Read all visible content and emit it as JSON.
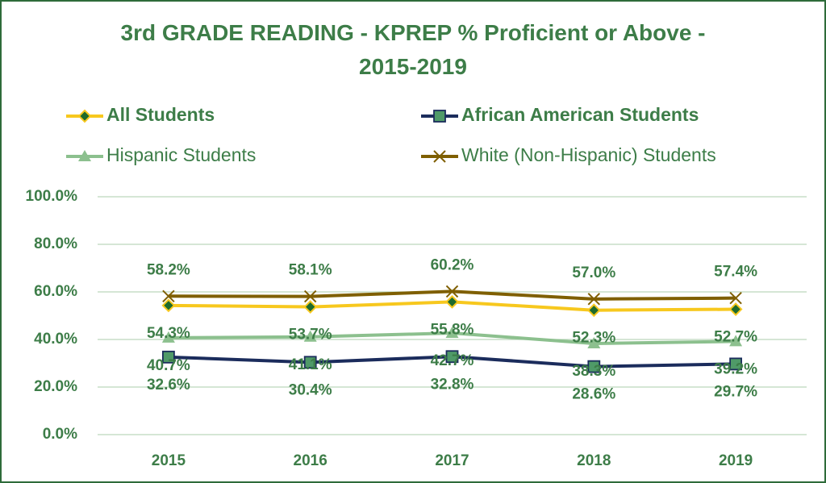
{
  "chart_data": {
    "type": "line",
    "title": "3rd GRADE READING - KPREP % Proficient or Above - 2015-2019",
    "categories": [
      "2015",
      "2016",
      "2017",
      "2018",
      "2019"
    ],
    "series": [
      {
        "name": "All Students",
        "color": "#f7c81e",
        "values": [
          54.3,
          53.7,
          55.8,
          52.3,
          52.7
        ],
        "value_labels": [
          "54.3%",
          "53.7%",
          "55.8%",
          "52.3%",
          "52.7%"
        ]
      },
      {
        "name": "African American Students",
        "color": "#1b2c5c",
        "values": [
          32.6,
          30.4,
          32.8,
          28.6,
          29.7
        ],
        "value_labels": [
          "32.6%",
          "30.4%",
          "32.8%",
          "28.6%",
          "29.7%"
        ]
      },
      {
        "name": "Hispanic Students",
        "color": "#8cc08e",
        "values": [
          40.7,
          41.1,
          42.7,
          38.3,
          39.2
        ],
        "value_labels": [
          "40.7%",
          "41.1%",
          "42.7%",
          "38.3%",
          "39.2%"
        ]
      },
      {
        "name": "White (Non-Hispanic) Students",
        "color": "#7f5f00",
        "values": [
          58.2,
          58.1,
          60.2,
          57.0,
          57.4
        ],
        "value_labels": [
          "58.2%",
          "58.1%",
          "60.2%",
          "57.0%",
          "57.4%"
        ]
      }
    ],
    "ylim": [
      0,
      100
    ],
    "yticks": [
      {
        "value": 0,
        "label": "0.0%"
      },
      {
        "value": 20,
        "label": "20.0%"
      },
      {
        "value": 40,
        "label": "40.0%"
      },
      {
        "value": 60,
        "label": "60.0%"
      },
      {
        "value": 80,
        "label": "80.0%"
      },
      {
        "value": 100,
        "label": "100.0%"
      }
    ],
    "grid": true,
    "legend": "top"
  }
}
